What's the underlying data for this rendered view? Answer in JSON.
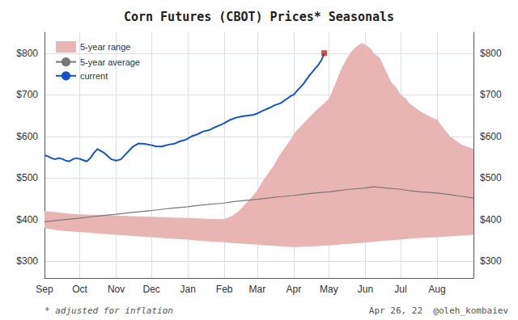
{
  "chart_data": {
    "type": "line",
    "title": "Corn Futures (CBOT) Prices* Seasonals",
    "xlim": [
      0,
      365
    ],
    "xticks": [
      {
        "value": 0,
        "label": "Sep"
      },
      {
        "value": 30,
        "label": "Oct"
      },
      {
        "value": 61,
        "label": "Nov"
      },
      {
        "value": 91,
        "label": "Dec"
      },
      {
        "value": 122,
        "label": "Jan"
      },
      {
        "value": 153,
        "label": "Feb"
      },
      {
        "value": 181,
        "label": "Mar"
      },
      {
        "value": 212,
        "label": "Apr"
      },
      {
        "value": 242,
        "label": "May"
      },
      {
        "value": 273,
        "label": "Jun"
      },
      {
        "value": 303,
        "label": "Jul"
      },
      {
        "value": 334,
        "label": "Aug"
      }
    ],
    "ylim": [
      260,
      850
    ],
    "yticks": [
      {
        "value": 300,
        "label": "$300"
      },
      {
        "value": 400,
        "label": "$400"
      },
      {
        "value": 500,
        "label": "$500"
      },
      {
        "value": 600,
        "label": "$600"
      },
      {
        "value": 700,
        "label": "$700"
      },
      {
        "value": 800,
        "label": "$800"
      }
    ],
    "grid": true,
    "legend": "upper left",
    "annotations": [
      "* adjusted for inflation",
      "Apr 26, 22  @oleh_kombaiev"
    ],
    "series": [
      {
        "name": "5-year range",
        "type": "range",
        "color": "#e8b4b4",
        "low_x": [
          0,
          10,
          20,
          30,
          40,
          50,
          61,
          70,
          80,
          91,
          100,
          110,
          122,
          130,
          140,
          153,
          160,
          170,
          181,
          190,
          200,
          212,
          220,
          230,
          242,
          250,
          260,
          273,
          280,
          290,
          303,
          310,
          320,
          334,
          345,
          355,
          365
        ],
        "low": [
          380,
          375,
          372,
          370,
          368,
          366,
          364,
          362,
          360,
          358,
          356,
          354,
          352,
          350,
          348,
          346,
          344,
          342,
          340,
          338,
          336,
          334,
          335,
          336,
          338,
          340,
          342,
          345,
          347,
          350,
          352,
          354,
          356,
          358,
          360,
          362,
          364
        ],
        "high_x": [
          0,
          10,
          20,
          30,
          40,
          50,
          61,
          70,
          80,
          91,
          100,
          110,
          122,
          130,
          140,
          153,
          160,
          165,
          170,
          175,
          181,
          185,
          190,
          195,
          200,
          205,
          210,
          212,
          215,
          220,
          225,
          230,
          235,
          240,
          242,
          245,
          248,
          250,
          253,
          256,
          260,
          265,
          270,
          273,
          278,
          280,
          285,
          290,
          295,
          300,
          303,
          308,
          310,
          315,
          320,
          325,
          330,
          334,
          340,
          345,
          355,
          365
        ],
        "high": [
          420,
          418,
          415,
          413,
          412,
          411,
          410,
          409,
          408,
          407,
          406,
          405,
          404,
          403,
          402,
          401,
          410,
          420,
          435,
          450,
          470,
          490,
          510,
          530,
          555,
          575,
          595,
          605,
          615,
          630,
          645,
          660,
          672,
          685,
          690,
          710,
          730,
          745,
          765,
          780,
          800,
          815,
          825,
          820,
          810,
          800,
          790,
          760,
          730,
          715,
          700,
          690,
          680,
          670,
          660,
          652,
          645,
          640,
          618,
          600,
          580,
          570
        ]
      },
      {
        "name": "5-year average",
        "type": "line",
        "color": "#777777",
        "x": [
          0,
          10,
          20,
          30,
          40,
          50,
          61,
          70,
          80,
          91,
          100,
          110,
          122,
          130,
          140,
          153,
          160,
          170,
          181,
          190,
          200,
          212,
          220,
          230,
          242,
          250,
          260,
          273,
          280,
          290,
          303,
          310,
          320,
          334,
          345,
          355,
          365
        ],
        "values": [
          395,
          398,
          401,
          404,
          407,
          410,
          413,
          416,
          419,
          422,
          425,
          428,
          431,
          434,
          437,
          440,
          443,
          446,
          449,
          452,
          455,
          458,
          461,
          464,
          467,
          470,
          473,
          476,
          479,
          476,
          473,
          470,
          467,
          464,
          460,
          456,
          452
        ]
      },
      {
        "name": "current",
        "type": "line",
        "color": "#1155cc",
        "x": [
          0,
          3,
          6,
          9,
          12,
          15,
          18,
          21,
          24,
          27,
          30,
          33,
          36,
          39,
          42,
          45,
          48,
          51,
          54,
          57,
          61,
          65,
          70,
          75,
          80,
          85,
          91,
          95,
          100,
          105,
          110,
          115,
          120,
          122,
          125,
          130,
          135,
          140,
          145,
          150,
          153,
          158,
          163,
          168,
          173,
          178,
          181,
          186,
          191,
          196,
          201,
          206,
          210,
          212,
          215,
          220,
          225,
          228,
          230,
          233,
          236,
          238
        ],
        "values": [
          555,
          552,
          548,
          545,
          548,
          546,
          542,
          540,
          545,
          548,
          546,
          543,
          540,
          548,
          560,
          570,
          565,
          560,
          552,
          545,
          542,
          545,
          560,
          575,
          583,
          582,
          579,
          576,
          576,
          580,
          582,
          588,
          592,
          595,
          600,
          605,
          612,
          615,
          622,
          628,
          632,
          640,
          645,
          648,
          650,
          652,
          655,
          662,
          668,
          675,
          680,
          690,
          698,
          700,
          710,
          725,
          745,
          755,
          762,
          772,
          785,
          800
        ]
      },
      {
        "type": "scatter",
        "color": "#cc2222",
        "marker": "square",
        "x": [
          238
        ],
        "values": [
          800
        ]
      }
    ]
  }
}
